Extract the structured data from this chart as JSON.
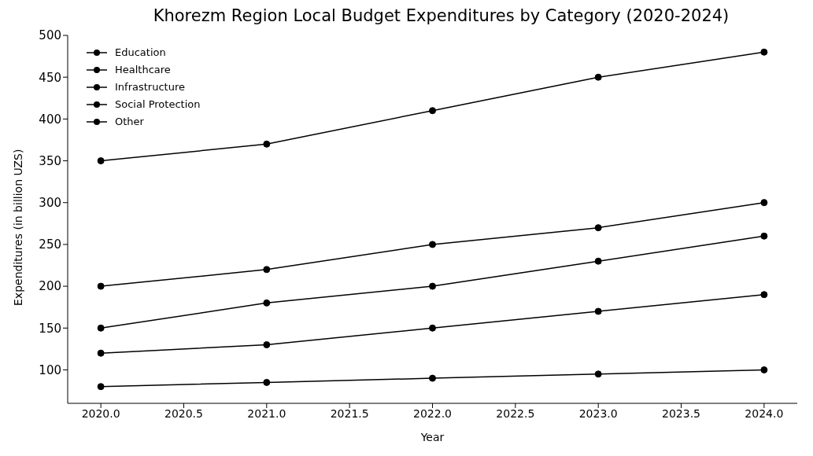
{
  "chart_data": {
    "type": "line",
    "title": "Khorezm Region Local Budget Expenditures by Category (2020-2024)",
    "xlabel": "Year",
    "ylabel": "Expenditures (in billion UZS)",
    "x": [
      2020,
      2021,
      2022,
      2023,
      2024
    ],
    "series": [
      {
        "name": "Education",
        "color": "#000000",
        "values": [
          350,
          370,
          410,
          450,
          480
        ]
      },
      {
        "name": "Healthcare",
        "color": "#000000",
        "values": [
          200,
          220,
          250,
          270,
          300
        ]
      },
      {
        "name": "Infrastructure",
        "color": "#000000",
        "values": [
          150,
          180,
          200,
          230,
          260
        ]
      },
      {
        "name": "Social Protection",
        "color": "#000000",
        "values": [
          120,
          130,
          150,
          170,
          190
        ]
      },
      {
        "name": "Other",
        "color": "#000000",
        "values": [
          80,
          85,
          90,
          95,
          100
        ]
      }
    ],
    "xlim": [
      2019.8,
      2024.2
    ],
    "xticks": [
      {
        "value": 2020,
        "label": "2020.0"
      },
      {
        "value": 2020.5,
        "label": "2020.5"
      },
      {
        "value": 2021,
        "label": "2021.0"
      },
      {
        "value": 2021.5,
        "label": "2021.5"
      },
      {
        "value": 2022,
        "label": "2022.0"
      },
      {
        "value": 2022.5,
        "label": "2022.5"
      },
      {
        "value": 2023,
        "label": "2023.0"
      },
      {
        "value": 2023.5,
        "label": "2023.5"
      },
      {
        "value": 2024,
        "label": "2024.0"
      }
    ],
    "ylim": [
      60,
      500
    ],
    "yticks": [
      100,
      150,
      200,
      250,
      300,
      350,
      400,
      450,
      500
    ],
    "legend": "top left",
    "marker": "circle",
    "line_style": "solid",
    "grid": false
  }
}
